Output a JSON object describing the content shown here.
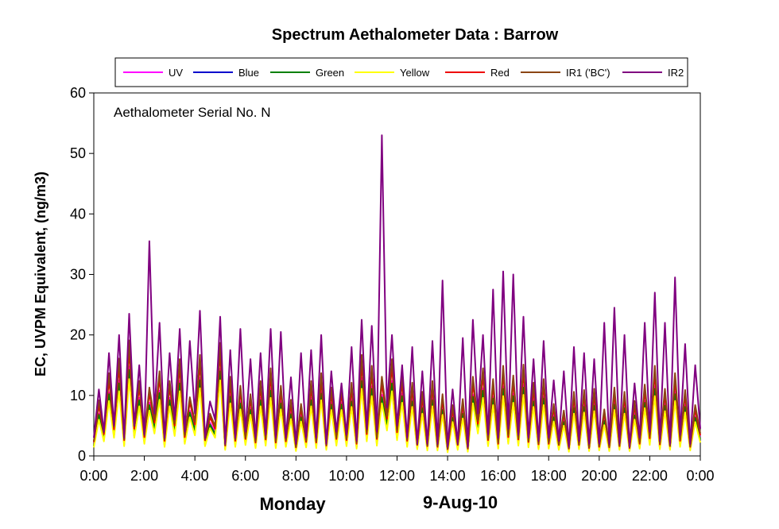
{
  "chart_data": {
    "type": "line",
    "title": "Spectrum Aethalometer Data  :  Barrow",
    "annotation": "Aethalometer  Serial No. N",
    "ylabel": "EC, UVPM Equivalent, (ng/m3)",
    "footer_day": "Monday",
    "footer_date": "9-Aug-10",
    "ylim": [
      0,
      60
    ],
    "yticks": [
      "0",
      "10",
      "20",
      "30",
      "40",
      "50",
      "60"
    ],
    "xlim": [
      0,
      24
    ],
    "xticks": [
      "0:00",
      "2:00",
      "4:00",
      "6:00",
      "8:00",
      "10:00",
      "12:00",
      "14:00",
      "16:00",
      "18:00",
      "20:00",
      "22:00",
      "0:00"
    ],
    "grid": false,
    "legend_position": "top",
    "x": [
      0.0,
      0.2,
      0.4,
      0.6,
      0.8,
      1.0,
      1.2,
      1.4,
      1.6,
      1.8,
      2.0,
      2.2,
      2.4,
      2.6,
      2.8,
      3.0,
      3.2,
      3.4,
      3.6,
      3.8,
      4.0,
      4.2,
      4.4,
      4.6,
      4.8,
      5.0,
      5.2,
      5.4,
      5.6,
      5.8,
      6.0,
      6.2,
      6.4,
      6.6,
      6.8,
      7.0,
      7.2,
      7.4,
      7.6,
      7.8,
      8.0,
      8.2,
      8.4,
      8.6,
      8.8,
      9.0,
      9.2,
      9.4,
      9.6,
      9.8,
      10.0,
      10.2,
      10.4,
      10.6,
      10.8,
      11.0,
      11.2,
      11.4,
      11.6,
      11.8,
      12.0,
      12.2,
      12.4,
      12.6,
      12.8,
      13.0,
      13.2,
      13.4,
      13.6,
      13.8,
      14.0,
      14.2,
      14.4,
      14.6,
      14.8,
      15.0,
      15.2,
      15.4,
      15.6,
      15.8,
      16.0,
      16.2,
      16.4,
      16.6,
      16.8,
      17.0,
      17.2,
      17.4,
      17.6,
      17.8,
      18.0,
      18.2,
      18.4,
      18.6,
      18.8,
      19.0,
      19.2,
      19.4,
      19.6,
      19.8,
      20.0,
      20.2,
      20.4,
      20.6,
      20.8,
      21.0,
      21.2,
      21.4,
      21.6,
      21.8,
      22.0,
      22.2,
      22.4,
      22.6,
      22.8,
      23.0,
      23.2,
      23.4,
      23.6,
      23.8,
      24.0
    ],
    "series": [
      {
        "name": "UV",
        "color": "#ff00ff",
        "values": [
          2.0,
          7.0,
          3.2,
          10.5,
          3.9,
          12.5,
          2.4,
          14.8,
          4.0,
          9.6,
          2.8,
          8.8,
          4.8,
          10.8,
          2.3,
          9.6,
          4.4,
          12.4,
          2.8,
          7.5,
          4.6,
          12.9,
          2.4,
          5.5,
          4.0,
          14.4,
          1.6,
          10.1,
          2.3,
          9.0,
          2.6,
          7.9,
          2.0,
          9.6,
          2.4,
          11.2,
          2.0,
          9.0,
          2.2,
          7.2,
          1.3,
          6.7,
          2.1,
          9.6,
          2.0,
          10.6,
          1.6,
          8.8,
          2.5,
          8.8,
          2.3,
          9.4,
          1.8,
          12.9,
          3.2,
          11.5,
          2.5,
          10.1,
          5.4,
          12.4,
          3.5,
          10.3,
          2.3,
          9.4,
          1.6,
          8.2,
          1.5,
          9.6,
          1.4,
          7.9,
          1.0,
          6.5,
          1.6,
          7.3,
          1.1,
          10.1,
          4.7,
          11.2,
          2.4,
          9.8,
          1.8,
          11.5,
          2.8,
          10.3,
          2.5,
          11.7,
          2.1,
          9.4,
          1.7,
          9.8,
          1.8,
          6.7,
          1.6,
          5.8,
          1.1,
          8.2,
          1.6,
          8.4,
          1.2,
          8.6,
          1.4,
          6.0,
          1.3,
          8.8,
          1.5,
          8.2,
          1.2,
          7.0,
          1.8,
          9.1,
          2.6,
          11.5,
          1.7,
          8.6,
          1.5,
          10.6,
          2.2,
          8.4,
          1.4,
          6.5,
          3.0
        ]
      },
      {
        "name": "Blue",
        "color": "#0000cc",
        "values": [
          1.6,
          6.4,
          2.7,
          9.6,
          3.3,
          11.3,
          1.9,
          13.4,
          3.3,
          8.7,
          2.3,
          7.9,
          4.1,
          9.8,
          1.8,
          8.7,
          3.6,
          11.3,
          2.3,
          6.8,
          3.8,
          11.8,
          1.9,
          4.9,
          3.3,
          13.2,
          1.2,
          9.2,
          1.8,
          8.2,
          2.1,
          7.2,
          1.6,
          8.7,
          2.0,
          10.2,
          1.6,
          8.2,
          1.8,
          6.5,
          1.0,
          6.0,
          1.7,
          8.7,
          1.6,
          9.7,
          1.2,
          8.0,
          2.0,
          8.0,
          1.9,
          8.5,
          1.4,
          11.7,
          2.7,
          10.5,
          2.0,
          9.2,
          4.6,
          11.3,
          2.9,
          9.3,
          1.8,
          8.5,
          1.3,
          7.4,
          1.1,
          8.7,
          1.1,
          7.2,
          0.8,
          5.9,
          1.2,
          6.6,
          0.9,
          9.2,
          4.0,
          10.2,
          1.9,
          8.9,
          1.4,
          10.5,
          2.3,
          9.3,
          2.0,
          10.6,
          1.7,
          8.5,
          1.3,
          8.9,
          1.4,
          6.0,
          1.2,
          5.3,
          0.9,
          7.4,
          1.3,
          7.6,
          1.0,
          7.8,
          1.1,
          5.4,
          1.0,
          8.0,
          1.2,
          7.4,
          1.0,
          6.3,
          1.4,
          8.3,
          2.1,
          10.5,
          1.3,
          7.8,
          1.2,
          9.6,
          1.8,
          7.6,
          1.1,
          5.9,
          2.5
        ]
      },
      {
        "name": "Green",
        "color": "#008000",
        "values": [
          1.7,
          6.8,
          2.9,
          10.2,
          3.6,
          12.0,
          2.1,
          14.2,
          3.7,
          9.2,
          2.6,
          8.4,
          4.4,
          10.4,
          2.0,
          9.2,
          4.0,
          12.0,
          2.5,
          7.2,
          4.2,
          12.5,
          2.1,
          5.2,
          3.6,
          14.0,
          1.4,
          9.8,
          2.0,
          8.7,
          2.3,
          7.6,
          1.8,
          9.2,
          2.2,
          10.8,
          1.8,
          8.7,
          2.0,
          6.9,
          1.2,
          6.4,
          1.9,
          9.2,
          1.8,
          10.3,
          1.4,
          8.5,
          2.2,
          8.5,
          2.1,
          9.0,
          1.6,
          12.4,
          2.9,
          11.1,
          2.2,
          9.7,
          5.0,
          12.0,
          3.2,
          9.9,
          2.0,
          9.0,
          1.4,
          7.9,
          1.3,
          9.2,
          1.2,
          7.6,
          0.9,
          6.3,
          1.4,
          7.0,
          1.0,
          9.8,
          4.3,
          10.8,
          2.1,
          9.5,
          1.6,
          11.1,
          2.5,
          9.9,
          2.2,
          11.3,
          1.9,
          9.0,
          1.5,
          9.5,
          1.6,
          6.4,
          1.4,
          5.6,
          1.0,
          7.9,
          1.4,
          8.1,
          1.1,
          8.3,
          1.2,
          5.8,
          1.1,
          8.5,
          1.3,
          7.9,
          1.1,
          6.7,
          1.6,
          8.8,
          2.3,
          11.1,
          1.5,
          8.3,
          1.3,
          10.2,
          2.0,
          8.1,
          1.2,
          6.3,
          2.7
        ]
      },
      {
        "name": "Yellow",
        "color": "#ffff00",
        "values": [
          1.4,
          6.0,
          2.4,
          9.1,
          3.0,
          10.7,
          1.6,
          12.7,
          3.0,
          8.2,
          2.0,
          7.5,
          3.7,
          9.3,
          1.5,
          8.2,
          3.3,
          10.7,
          2.0,
          6.4,
          3.4,
          11.2,
          1.6,
          4.6,
          3.0,
          12.5,
          1.0,
          8.7,
          1.5,
          7.7,
          1.8,
          6.8,
          1.3,
          8.2,
          1.7,
          9.6,
          1.3,
          7.7,
          1.5,
          6.1,
          0.8,
          5.7,
          1.4,
          8.2,
          1.3,
          9.2,
          1.0,
          7.6,
          1.7,
          7.6,
          1.6,
          8.1,
          1.2,
          11.1,
          2.4,
          9.9,
          1.7,
          8.7,
          4.2,
          10.7,
          2.6,
          8.8,
          1.5,
          8.1,
          1.1,
          7.0,
          0.9,
          8.2,
          0.9,
          6.8,
          0.6,
          5.6,
          1.0,
          6.2,
          0.7,
          8.7,
          3.7,
          9.6,
          1.6,
          8.4,
          1.2,
          9.9,
          2.0,
          8.8,
          1.7,
          10.1,
          1.4,
          8.1,
          1.1,
          8.4,
          1.2,
          5.7,
          1.0,
          5.0,
          0.7,
          7.0,
          1.1,
          7.2,
          0.8,
          7.4,
          0.9,
          5.1,
          0.8,
          7.6,
          1.0,
          7.0,
          0.8,
          6.0,
          1.2,
          7.9,
          1.8,
          9.9,
          1.1,
          7.4,
          1.0,
          9.1,
          1.5,
          7.2,
          0.9,
          5.6,
          2.2
        ]
      },
      {
        "name": "Red",
        "color": "#ee0000",
        "values": [
          2.3,
          8.4,
          3.6,
          12.6,
          4.4,
          14.8,
          2.6,
          17.6,
          4.5,
          11.4,
          3.1,
          10.4,
          5.5,
          12.9,
          2.5,
          11.4,
          5.0,
          14.7,
          3.1,
          8.9,
          5.2,
          15.3,
          2.6,
          6.4,
          4.5,
          17.2,
          1.7,
          12.0,
          2.5,
          10.7,
          2.8,
          9.4,
          2.2,
          11.4,
          2.7,
          13.3,
          2.2,
          10.7,
          2.4,
          8.5,
          1.4,
          7.9,
          2.3,
          11.4,
          2.2,
          12.6,
          1.7,
          10.4,
          2.8,
          10.4,
          2.6,
          11.1,
          2.0,
          15.3,
          3.6,
          13.7,
          2.8,
          12.0,
          6.1,
          14.7,
          3.9,
          12.2,
          2.5,
          11.1,
          1.8,
          9.7,
          1.6,
          11.4,
          1.5,
          9.4,
          1.1,
          7.7,
          1.8,
          8.6,
          1.2,
          12.0,
          5.3,
          13.3,
          2.6,
          11.7,
          2.0,
          13.7,
          3.1,
          12.2,
          2.7,
          13.9,
          2.3,
          11.1,
          1.9,
          11.7,
          2.0,
          7.9,
          1.8,
          6.9,
          1.2,
          9.7,
          1.8,
          10.0,
          1.3,
          10.2,
          1.5,
          7.1,
          1.4,
          10.4,
          1.6,
          9.7,
          1.3,
          8.3,
          2.0,
          10.8,
          2.9,
          13.7,
          1.9,
          10.2,
          1.6,
          12.6,
          2.5,
          10.0,
          1.5,
          7.7,
          3.4
        ]
      },
      {
        "name": "IR1 ('BC')",
        "color": "#8b4513",
        "values": [
          2.4,
          9.2,
          3.9,
          13.7,
          4.8,
          16.1,
          2.8,
          19.1,
          4.9,
          12.4,
          3.4,
          11.3,
          6.0,
          14.0,
          2.7,
          12.4,
          5.4,
          16.0,
          3.4,
          9.7,
          5.6,
          16.7,
          2.8,
          7.0,
          4.9,
          18.7,
          1.8,
          13.1,
          2.7,
          11.6,
          3.0,
          10.2,
          2.4,
          12.4,
          2.9,
          14.5,
          2.4,
          11.6,
          2.6,
          9.3,
          1.5,
          8.6,
          2.5,
          12.4,
          2.4,
          13.7,
          1.8,
          11.3,
          3.0,
          11.3,
          2.8,
          12.1,
          2.2,
          16.7,
          3.9,
          14.9,
          3.0,
          13.1,
          6.6,
          16.0,
          4.2,
          13.3,
          2.7,
          12.1,
          1.9,
          10.6,
          1.7,
          12.4,
          1.6,
          10.2,
          1.2,
          8.4,
          1.9,
          9.4,
          1.3,
          13.1,
          5.8,
          14.5,
          2.8,
          12.7,
          2.2,
          14.9,
          3.4,
          13.3,
          2.9,
          15.1,
          2.5,
          12.1,
          2.1,
          12.7,
          2.2,
          8.6,
          1.9,
          7.5,
          1.3,
          10.6,
          1.9,
          10.9,
          1.4,
          11.1,
          1.6,
          7.7,
          1.5,
          11.3,
          1.7,
          10.6,
          1.4,
          9.1,
          2.2,
          11.8,
          3.2,
          14.9,
          2.1,
          11.1,
          1.7,
          13.7,
          2.7,
          10.9,
          1.6,
          8.4,
          3.7
        ]
      },
      {
        "name": "IR2",
        "color": "#800080",
        "values": [
          3.0,
          11.0,
          4.0,
          17.0,
          5.0,
          20.0,
          3.0,
          23.5,
          5.0,
          15.0,
          3.5,
          35.5,
          7.0,
          22.0,
          3.0,
          17.0,
          6.0,
          21.0,
          4.0,
          19.0,
          7.0,
          24.0,
          3.0,
          9.0,
          6.0,
          23.0,
          2.0,
          17.5,
          3.0,
          21.0,
          4.0,
          16.0,
          3.0,
          17.0,
          3.5,
          21.0,
          3.0,
          20.5,
          3.0,
          13.0,
          2.0,
          17.0,
          3.0,
          17.5,
          3.0,
          20.0,
          2.0,
          14.0,
          4.0,
          12.0,
          3.5,
          18.0,
          2.5,
          22.5,
          4.5,
          21.5,
          4.0,
          53.0,
          8.0,
          20.0,
          5.0,
          15.0,
          3.0,
          18.0,
          2.0,
          14.0,
          2.0,
          19.0,
          2.0,
          29.0,
          1.5,
          11.0,
          2.0,
          19.5,
          1.5,
          22.5,
          7.0,
          20.0,
          3.5,
          27.5,
          3.0,
          30.5,
          4.5,
          30.0,
          3.5,
          23.0,
          3.0,
          16.0,
          2.5,
          19.0,
          3.0,
          12.5,
          2.5,
          14.0,
          1.5,
          18.0,
          2.5,
          17.0,
          2.0,
          16.0,
          2.0,
          22.0,
          2.0,
          24.5,
          2.0,
          20.0,
          1.5,
          12.0,
          3.0,
          22.0,
          4.0,
          27.0,
          2.5,
          22.0,
          2.0,
          29.5,
          3.5,
          18.5,
          2.0,
          15.0,
          4.5
        ]
      }
    ]
  }
}
